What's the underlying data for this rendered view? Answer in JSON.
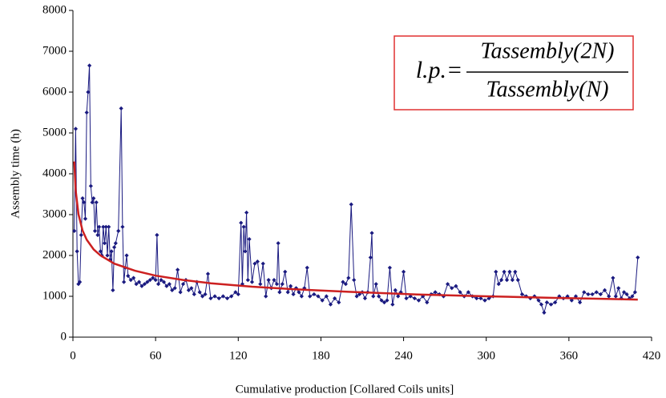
{
  "chart_data": {
    "type": "line",
    "xlabel": "Cumulative production [Collared Coils units]",
    "ylabel": "Assembly time (h)",
    "xlim": [
      0,
      420
    ],
    "xticks": [
      0,
      60,
      120,
      180,
      240,
      300,
      360,
      420
    ],
    "ylim": [
      0,
      8000
    ],
    "yticks": [
      0,
      1000,
      2000,
      3000,
      4000,
      5000,
      6000,
      7000,
      8000
    ],
    "annotation": {
      "lhs": "l.p.=",
      "numerator": "Tassembly(2N)",
      "denominator": "Tassembly(N)",
      "box_color": "#e03030"
    },
    "series": [
      {
        "color": "#1a1a80",
        "marker": "diamond",
        "x": [
          1,
          2,
          3,
          4,
          5,
          6,
          7,
          8,
          9,
          10,
          11,
          12,
          13,
          14,
          15,
          16,
          17,
          18,
          19,
          20,
          21,
          22,
          23,
          24,
          25,
          26,
          27,
          28,
          29,
          30,
          31,
          33,
          35,
          36,
          37,
          38,
          39,
          40,
          42,
          44,
          46,
          48,
          50,
          52,
          54,
          56,
          58,
          60,
          61,
          62,
          64,
          66,
          68,
          70,
          72,
          74,
          76,
          78,
          80,
          82,
          84,
          86,
          88,
          90,
          92,
          94,
          96,
          98,
          100,
          103,
          106,
          109,
          112,
          115,
          118,
          120,
          122,
          123,
          124,
          125,
          126,
          127,
          128,
          130,
          132,
          134,
          136,
          138,
          140,
          142,
          144,
          146,
          148,
          149,
          150,
          152,
          154,
          156,
          158,
          160,
          162,
          164,
          166,
          168,
          170,
          172,
          175,
          178,
          181,
          184,
          187,
          190,
          193,
          196,
          198,
          200,
          202,
          204,
          206,
          208,
          210,
          212,
          214,
          216,
          217,
          218,
          220,
          222,
          224,
          226,
          228,
          230,
          232,
          234,
          236,
          238,
          240,
          242,
          245,
          248,
          251,
          254,
          257,
          260,
          263,
          266,
          269,
          272,
          275,
          278,
          281,
          284,
          287,
          290,
          293,
          296,
          299,
          302,
          305,
          307,
          309,
          311,
          313,
          315,
          317,
          319,
          321,
          323,
          326,
          329,
          332,
          335,
          338,
          340,
          342,
          344,
          347,
          350,
          353,
          356,
          359,
          362,
          365,
          368,
          371,
          374,
          377,
          380,
          383,
          386,
          389,
          392,
          394,
          396,
          398,
          400,
          402,
          404,
          406,
          408,
          410
        ],
        "values": [
          2600,
          5100,
          2100,
          1300,
          1350,
          2500,
          3400,
          3300,
          2900,
          5500,
          6000,
          6650,
          3700,
          3300,
          3400,
          2600,
          3300,
          2500,
          2700,
          2100,
          2000,
          2700,
          2300,
          2700,
          2000,
          2700,
          1900,
          2100,
          1150,
          2200,
          2300,
          2600,
          5600,
          2700,
          1350,
          1700,
          2000,
          1500,
          1400,
          1450,
          1300,
          1350,
          1250,
          1300,
          1350,
          1400,
          1450,
          1400,
          2500,
          1300,
          1400,
          1350,
          1250,
          1300,
          1150,
          1200,
          1650,
          1100,
          1300,
          1400,
          1150,
          1200,
          1050,
          1350,
          1100,
          1000,
          1050,
          1550,
          950,
          1000,
          950,
          1000,
          950,
          1000,
          1100,
          1050,
          2800,
          1300,
          2700,
          2100,
          3050,
          1400,
          2400,
          1350,
          1800,
          1850,
          1300,
          1800,
          1000,
          1400,
          1200,
          1400,
          1300,
          2300,
          1100,
          1300,
          1600,
          1100,
          1250,
          1050,
          1200,
          1100,
          1000,
          1200,
          1700,
          1000,
          1050,
          1000,
          900,
          1000,
          800,
          950,
          850,
          1350,
          1300,
          1450,
          3250,
          1400,
          1000,
          1050,
          1100,
          950,
          1100,
          1950,
          2550,
          1000,
          1300,
          1000,
          900,
          850,
          900,
          1700,
          800,
          1150,
          1000,
          1100,
          1600,
          950,
          1000,
          950,
          900,
          1000,
          850,
          1050,
          1100,
          1050,
          1000,
          1300,
          1200,
          1250,
          1100,
          1000,
          1100,
          1000,
          950,
          950,
          900,
          950,
          1000,
          1600,
          1300,
          1400,
          1600,
          1400,
          1600,
          1400,
          1600,
          1400,
          1050,
          1000,
          950,
          1000,
          900,
          800,
          600,
          850,
          800,
          850,
          1000,
          950,
          1000,
          900,
          1000,
          850,
          1100,
          1050,
          1050,
          1100,
          1050,
          1150,
          1000,
          1450,
          1000,
          1200,
          950,
          1100,
          1050,
          950,
          1000,
          1100,
          1950
        ]
      },
      {
        "color": "#cc2020",
        "marker": "none",
        "x": [
          1,
          2,
          4,
          7,
          10,
          15,
          20,
          30,
          45,
          60,
          80,
          100,
          130,
          160,
          200,
          250,
          300,
          350,
          410
        ],
        "values": [
          4300,
          3600,
          3010,
          2610,
          2385,
          2150,
          2000,
          1800,
          1625,
          1505,
          1400,
          1320,
          1235,
          1175,
          1110,
          1045,
          1000,
          960,
          920
        ]
      }
    ]
  }
}
